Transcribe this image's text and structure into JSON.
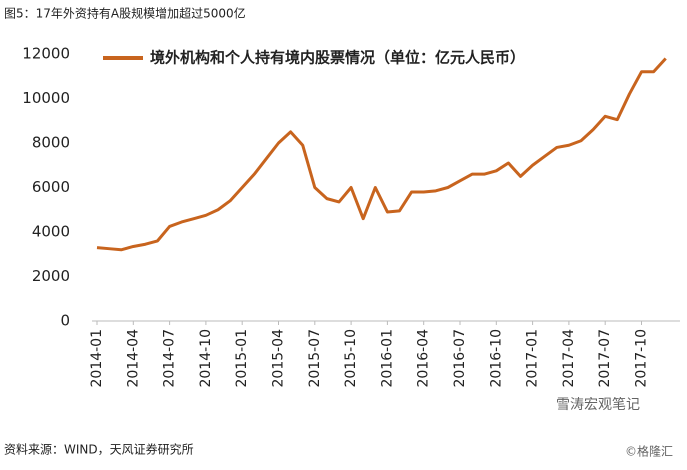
{
  "header": {
    "title": "图5：17年外资持有A股规模增加超过5000亿"
  },
  "source": "资料来源：WIND，天风证券研究所",
  "watermark": {
    "account": "雪涛宏观笔记",
    "site": "©格隆汇"
  },
  "chart_data": {
    "type": "line",
    "categories": [
      "2014-01",
      null,
      null,
      "2014-04",
      null,
      null,
      "2014-07",
      null,
      null,
      "2014-10",
      null,
      null,
      "2015-01",
      null,
      null,
      "2015-04",
      null,
      null,
      "2015-07",
      null,
      null,
      "2015-10",
      null,
      null,
      "2016-01",
      null,
      null,
      "2016-04",
      null,
      null,
      "2016-07",
      null,
      null,
      "2016-10",
      null,
      null,
      "2017-01",
      null,
      null,
      "2017-04",
      null,
      null,
      "2017-07",
      null,
      null,
      "2017-10",
      null,
      null
    ],
    "series": [
      {
        "name": "境外机构和个人持有境内股票情况（单位：亿元人民币）",
        "color": "#c8641e",
        "values": [
          3300,
          3250,
          3200,
          3350,
          3450,
          3600,
          4250,
          4450,
          4600,
          4750,
          5000,
          5400,
          6000,
          6600,
          7300,
          8000,
          8500,
          7900,
          6000,
          5500,
          5350,
          6000,
          4600,
          6000,
          4900,
          4950,
          5800,
          5800,
          5850,
          6000,
          6300,
          6600,
          6600,
          6750,
          7100,
          6500,
          7000,
          7400,
          7800,
          7900,
          8100,
          8600,
          9200,
          9050,
          10200,
          11200,
          11200,
          11800
        ]
      }
    ],
    "ylim": [
      0,
      12000
    ],
    "yticks": [
      0,
      2000,
      4000,
      6000,
      8000,
      10000,
      12000
    ],
    "grid": false,
    "legend": "top"
  }
}
